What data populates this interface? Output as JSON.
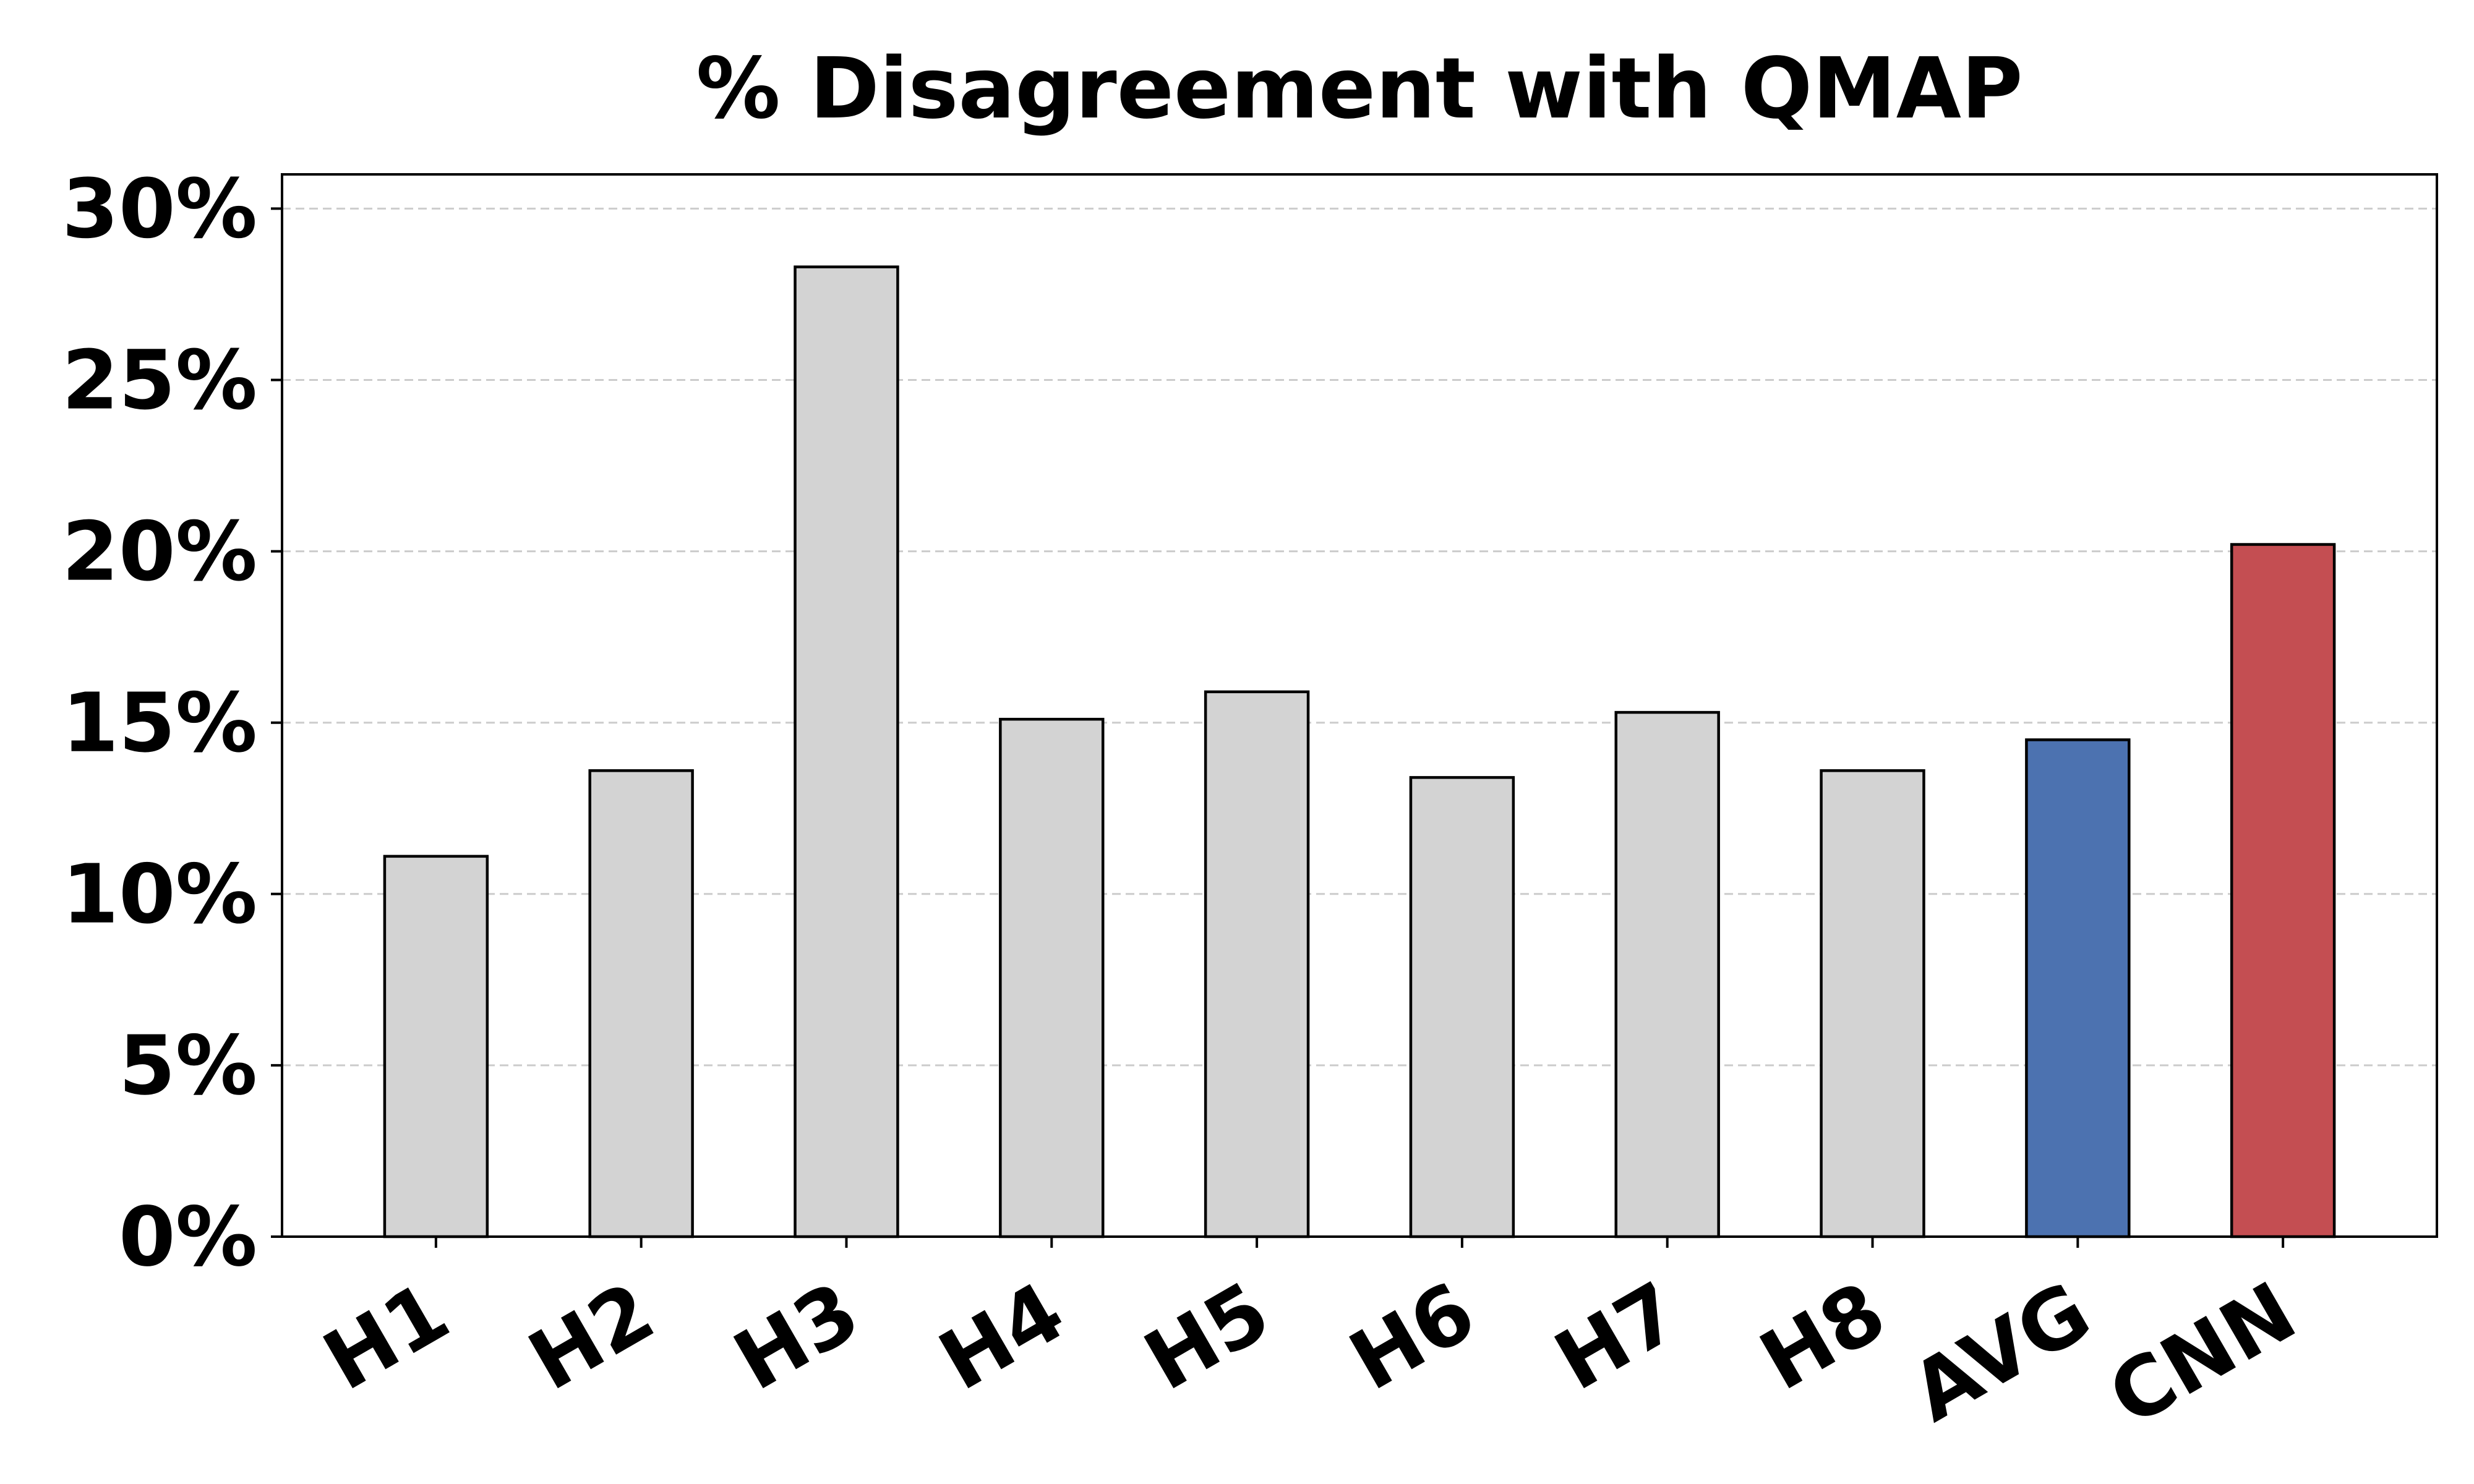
{
  "chart_data": {
    "type": "bar",
    "title": "% Disagreement with QMAP",
    "xlabel": "",
    "ylabel": "",
    "categories": [
      "H1",
      "H2",
      "H3",
      "H4",
      "H5",
      "H6",
      "H7",
      "H8",
      "AVG",
      "CNN"
    ],
    "values": [
      11.1,
      13.6,
      28.3,
      15.1,
      15.9,
      13.4,
      15.3,
      13.6,
      14.5,
      20.2
    ],
    "colors": [
      "#d3d3d3",
      "#d3d3d3",
      "#d3d3d3",
      "#d3d3d3",
      "#d3d3d3",
      "#d3d3d3",
      "#d3d3d3",
      "#d3d3d3",
      "#4c72b0",
      "#c44e52"
    ],
    "ylim": [
      0,
      31
    ],
    "yticks": [
      0,
      5,
      10,
      15,
      20,
      25,
      30
    ],
    "ytick_labels": [
      "0%",
      "5%",
      "10%",
      "15%",
      "20%",
      "25%",
      "30%"
    ],
    "grid": "horizontal dashed",
    "legend": "none"
  }
}
